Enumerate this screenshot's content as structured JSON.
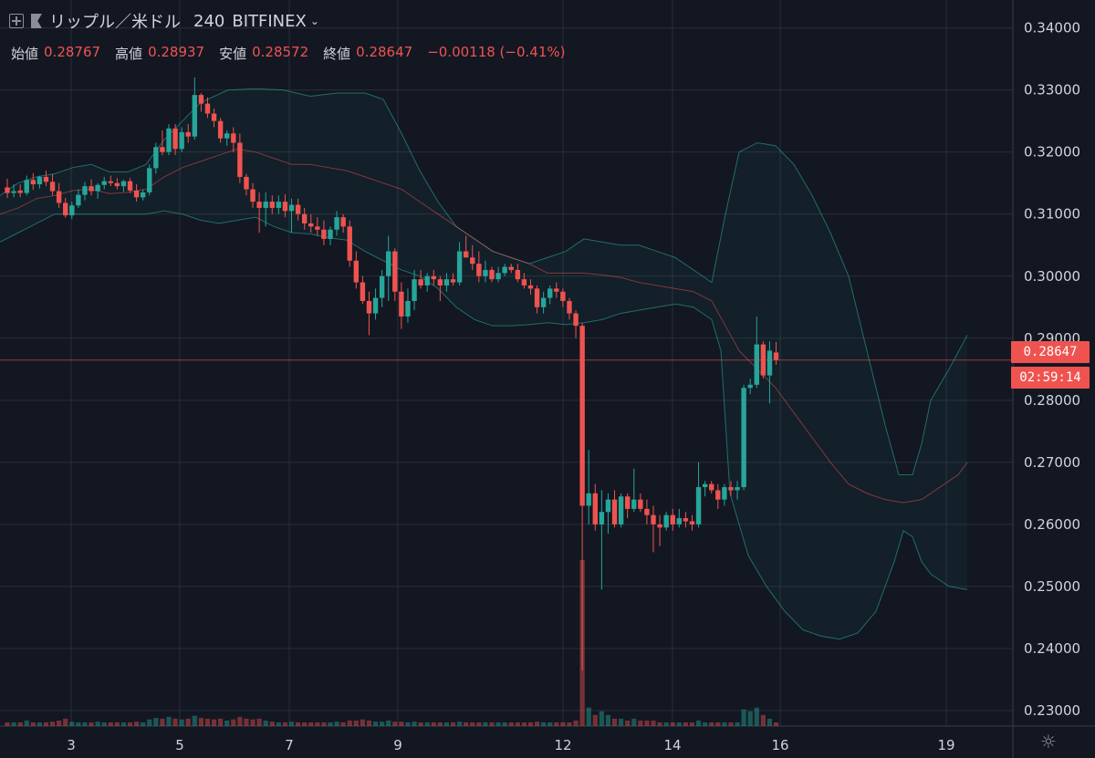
{
  "header": {
    "symbol": "リップル／米ドル",
    "interval": "240",
    "exchange": "BITFINEX"
  },
  "ohlc": {
    "open_label": "始値",
    "open": "0.28767",
    "high_label": "高値",
    "high": "0.28937",
    "low_label": "安値",
    "low": "0.28572",
    "close_label": "終値",
    "close": "0.28647",
    "change": "−0.00118 (−0.41%)"
  },
  "price_tag": "0.28647",
  "countdown": "02:59:14",
  "colors": {
    "up": "#26a69a",
    "down": "#ef5350",
    "bg": "#131722",
    "grid": "#2a2e39"
  },
  "chart_data": {
    "type": "candlestick",
    "y_range": [
      0.2275,
      0.3445
    ],
    "y_ticks": [
      "0.34000",
      "0.33000",
      "0.32000",
      "0.31000",
      "0.30000",
      "0.29000",
      "0.28000",
      "0.27000",
      "0.26000",
      "0.25000",
      "0.24000",
      "0.23000"
    ],
    "x_ticks": [
      "3",
      "5",
      "7",
      "9",
      "12",
      "14",
      "16",
      "19"
    ],
    "overlays": [
      "Bollinger Bands",
      "Volume"
    ],
    "candles": [
      [
        0.3143,
        0.3157,
        0.3126,
        0.3134
      ],
      [
        0.3134,
        0.3148,
        0.3127,
        0.3137
      ],
      [
        0.3138,
        0.3148,
        0.3127,
        0.3134
      ],
      [
        0.3134,
        0.3162,
        0.313,
        0.3155
      ],
      [
        0.3155,
        0.3166,
        0.3139,
        0.3148
      ],
      [
        0.3148,
        0.3162,
        0.3141,
        0.316
      ],
      [
        0.316,
        0.317,
        0.3145,
        0.3152
      ],
      [
        0.3152,
        0.3165,
        0.313,
        0.3137
      ],
      [
        0.3137,
        0.315,
        0.311,
        0.3118
      ],
      [
        0.3118,
        0.3126,
        0.3094,
        0.3098
      ],
      [
        0.3098,
        0.312,
        0.3092,
        0.3114
      ],
      [
        0.3114,
        0.314,
        0.311,
        0.3131
      ],
      [
        0.3131,
        0.3152,
        0.3122,
        0.3145
      ],
      [
        0.3145,
        0.3156,
        0.313,
        0.3137
      ],
      [
        0.3137,
        0.315,
        0.3125,
        0.3147
      ],
      [
        0.3147,
        0.316,
        0.314,
        0.3153
      ],
      [
        0.3153,
        0.3162,
        0.3145,
        0.315
      ],
      [
        0.315,
        0.3158,
        0.314,
        0.3145
      ],
      [
        0.3145,
        0.3155,
        0.3136,
        0.3153
      ],
      [
        0.3153,
        0.3158,
        0.3134,
        0.3138
      ],
      [
        0.3138,
        0.3148,
        0.312,
        0.3127
      ],
      [
        0.3127,
        0.314,
        0.3122,
        0.3135
      ],
      [
        0.3135,
        0.318,
        0.313,
        0.3174
      ],
      [
        0.3174,
        0.3215,
        0.3165,
        0.3208
      ],
      [
        0.3208,
        0.3235,
        0.3195,
        0.32
      ],
      [
        0.32,
        0.3245,
        0.3195,
        0.3238
      ],
      [
        0.3238,
        0.3245,
        0.3195,
        0.3205
      ],
      [
        0.3205,
        0.324,
        0.32,
        0.3232
      ],
      [
        0.3232,
        0.3245,
        0.3215,
        0.3225
      ],
      [
        0.3225,
        0.332,
        0.322,
        0.3292
      ],
      [
        0.3292,
        0.3295,
        0.3265,
        0.3278
      ],
      [
        0.3278,
        0.3288,
        0.3255,
        0.3262
      ],
      [
        0.3262,
        0.327,
        0.324,
        0.325
      ],
      [
        0.325,
        0.3255,
        0.3215,
        0.3222
      ],
      [
        0.3222,
        0.3235,
        0.321,
        0.323
      ],
      [
        0.323,
        0.324,
        0.32,
        0.3215
      ],
      [
        0.3215,
        0.323,
        0.315,
        0.316
      ],
      [
        0.316,
        0.3165,
        0.313,
        0.314
      ],
      [
        0.314,
        0.315,
        0.311,
        0.312
      ],
      [
        0.312,
        0.3135,
        0.307,
        0.311
      ],
      [
        0.311,
        0.3135,
        0.308,
        0.312
      ],
      [
        0.312,
        0.313,
        0.31,
        0.311
      ],
      [
        0.311,
        0.313,
        0.31,
        0.312
      ],
      [
        0.312,
        0.3132,
        0.3095,
        0.3105
      ],
      [
        0.3105,
        0.3125,
        0.307,
        0.3115
      ],
      [
        0.3115,
        0.3125,
        0.309,
        0.31
      ],
      [
        0.31,
        0.311,
        0.3075,
        0.3085
      ],
      [
        0.3085,
        0.31,
        0.307,
        0.308
      ],
      [
        0.308,
        0.3095,
        0.3065,
        0.3075
      ],
      [
        0.3075,
        0.309,
        0.305,
        0.306
      ],
      [
        0.306,
        0.308,
        0.305,
        0.3075
      ],
      [
        0.3075,
        0.3105,
        0.3065,
        0.3095
      ],
      [
        0.3095,
        0.31,
        0.307,
        0.308
      ],
      [
        0.308,
        0.309,
        0.3015,
        0.3025
      ],
      [
        0.3025,
        0.304,
        0.298,
        0.299
      ],
      [
        0.299,
        0.3,
        0.2955,
        0.296
      ],
      [
        0.296,
        0.2975,
        0.2905,
        0.294
      ],
      [
        0.294,
        0.298,
        0.293,
        0.2965
      ],
      [
        0.2965,
        0.301,
        0.295,
        0.3
      ],
      [
        0.3,
        0.3065,
        0.296,
        0.304
      ],
      [
        0.304,
        0.3045,
        0.296,
        0.2975
      ],
      [
        0.2975,
        0.299,
        0.2915,
        0.2935
      ],
      [
        0.2935,
        0.298,
        0.2925,
        0.296
      ],
      [
        0.296,
        0.301,
        0.2945,
        0.2995
      ],
      [
        0.2995,
        0.301,
        0.298,
        0.2985
      ],
      [
        0.2985,
        0.3005,
        0.2975,
        0.3
      ],
      [
        0.3,
        0.301,
        0.2985,
        0.2995
      ],
      [
        0.2995,
        0.3,
        0.296,
        0.2985
      ],
      [
        0.2985,
        0.3005,
        0.2975,
        0.2995
      ],
      [
        0.2995,
        0.3005,
        0.2985,
        0.299
      ],
      [
        0.299,
        0.3055,
        0.2985,
        0.304
      ],
      [
        0.304,
        0.3065,
        0.303,
        0.303
      ],
      [
        0.303,
        0.305,
        0.301,
        0.302
      ],
      [
        0.302,
        0.304,
        0.299,
        0.3
      ],
      [
        0.3,
        0.3025,
        0.299,
        0.301
      ],
      [
        0.301,
        0.3015,
        0.299,
        0.2995
      ],
      [
        0.2995,
        0.3015,
        0.299,
        0.3005
      ],
      [
        0.3005,
        0.302,
        0.3,
        0.3015
      ],
      [
        0.3015,
        0.302,
        0.3005,
        0.301
      ],
      [
        0.301,
        0.302,
        0.299,
        0.2995
      ],
      [
        0.2995,
        0.3005,
        0.298,
        0.2985
      ],
      [
        0.2985,
        0.2995,
        0.297,
        0.298
      ],
      [
        0.298,
        0.2985,
        0.294,
        0.295
      ],
      [
        0.295,
        0.2975,
        0.294,
        0.2965
      ],
      [
        0.2965,
        0.2985,
        0.2955,
        0.298
      ],
      [
        0.298,
        0.299,
        0.2965,
        0.2975
      ],
      [
        0.2975,
        0.298,
        0.295,
        0.296
      ],
      [
        0.296,
        0.2965,
        0.293,
        0.294
      ],
      [
        0.294,
        0.2945,
        0.29,
        0.292
      ],
      [
        0.292,
        0.2925,
        0.2365,
        0.263
      ],
      [
        0.263,
        0.272,
        0.26,
        0.265
      ],
      [
        0.265,
        0.2665,
        0.259,
        0.26
      ],
      [
        0.26,
        0.2655,
        0.2495,
        0.262
      ],
      [
        0.262,
        0.265,
        0.2585,
        0.264
      ],
      [
        0.264,
        0.2655,
        0.2595,
        0.26
      ],
      [
        0.26,
        0.265,
        0.2595,
        0.2645
      ],
      [
        0.2645,
        0.265,
        0.261,
        0.2625
      ],
      [
        0.2625,
        0.269,
        0.262,
        0.264
      ],
      [
        0.264,
        0.265,
        0.262,
        0.2625
      ],
      [
        0.2625,
        0.264,
        0.26,
        0.2615
      ],
      [
        0.2615,
        0.263,
        0.2555,
        0.26
      ],
      [
        0.26,
        0.2615,
        0.2565,
        0.2595
      ],
      [
        0.2595,
        0.262,
        0.259,
        0.2615
      ],
      [
        0.2615,
        0.2625,
        0.259,
        0.26
      ],
      [
        0.26,
        0.2625,
        0.2595,
        0.261
      ],
      [
        0.261,
        0.262,
        0.2595,
        0.2605
      ],
      [
        0.2605,
        0.2615,
        0.259,
        0.26
      ],
      [
        0.26,
        0.27,
        0.2595,
        0.266
      ],
      [
        0.266,
        0.267,
        0.2645,
        0.2665
      ],
      [
        0.2665,
        0.267,
        0.265,
        0.2655
      ],
      [
        0.2655,
        0.2665,
        0.2625,
        0.264
      ],
      [
        0.264,
        0.2665,
        0.263,
        0.266
      ],
      [
        0.266,
        0.267,
        0.2645,
        0.2655
      ],
      [
        0.2655,
        0.267,
        0.264,
        0.266
      ],
      [
        0.266,
        0.2825,
        0.2655,
        0.282
      ],
      [
        0.282,
        0.2835,
        0.281,
        0.2825
      ],
      [
        0.2825,
        0.2935,
        0.282,
        0.289
      ],
      [
        0.289,
        0.2895,
        0.2835,
        0.284
      ],
      [
        0.284,
        0.2895,
        0.2795,
        0.288
      ],
      [
        0.2877,
        0.2894,
        0.2857,
        0.2865
      ]
    ],
    "volume_x_fraction": [
      0.01,
      0.01,
      0.01,
      0.015,
      0.01,
      0.01,
      0.01,
      0.012,
      0.015,
      0.02,
      0.012,
      0.01,
      0.01,
      0.01,
      0.012,
      0.01,
      0.01,
      0.01,
      0.01,
      0.01,
      0.012,
      0.01,
      0.018,
      0.022,
      0.02,
      0.025,
      0.02,
      0.018,
      0.02,
      0.028,
      0.022,
      0.02,
      0.018,
      0.02,
      0.015,
      0.018,
      0.025,
      0.02,
      0.018,
      0.02,
      0.015,
      0.012,
      0.01,
      0.01,
      0.012,
      0.01,
      0.01,
      0.01,
      0.01,
      0.01,
      0.01,
      0.012,
      0.01,
      0.015,
      0.015,
      0.018,
      0.015,
      0.012,
      0.012,
      0.015,
      0.012,
      0.012,
      0.01,
      0.012,
      0.01,
      0.01,
      0.01,
      0.01,
      0.01,
      0.01,
      0.012,
      0.01,
      0.01,
      0.01,
      0.01,
      0.01,
      0.01,
      0.01,
      0.01,
      0.01,
      0.01,
      0.01,
      0.012,
      0.01,
      0.01,
      0.01,
      0.01,
      0.01,
      0.015,
      0.45,
      0.05,
      0.03,
      0.04,
      0.03,
      0.02,
      0.02,
      0.015,
      0.02,
      0.015,
      0.015,
      0.015,
      0.01,
      0.01,
      0.01,
      0.01,
      0.01,
      0.01,
      0.015,
      0.01,
      0.01,
      0.01,
      0.01,
      0.01,
      0.01,
      0.045,
      0.04,
      0.05,
      0.03,
      0.02,
      0.01
    ],
    "bollinger_upper": [
      [
        0.313,
        0
      ],
      [
        0.315,
        20
      ],
      [
        0.316,
        40
      ],
      [
        0.3165,
        60
      ],
      [
        0.3175,
        80
      ],
      [
        0.318,
        100
      ],
      [
        0.3168,
        120
      ],
      [
        0.3168,
        140
      ],
      [
        0.318,
        160
      ],
      [
        0.322,
        180
      ],
      [
        0.325,
        200
      ],
      [
        0.328,
        220
      ],
      [
        0.33,
        250
      ],
      [
        0.3302,
        280
      ],
      [
        0.33,
        310
      ],
      [
        0.329,
        340
      ],
      [
        0.3295,
        370
      ],
      [
        0.3295,
        400
      ],
      [
        0.3285,
        420
      ],
      [
        0.323,
        440
      ],
      [
        0.317,
        460
      ],
      [
        0.312,
        480
      ],
      [
        0.308,
        500
      ],
      [
        0.306,
        520
      ],
      [
        0.304,
        540
      ],
      [
        0.303,
        560
      ],
      [
        0.302,
        580
      ],
      [
        0.303,
        600
      ],
      [
        0.304,
        620
      ],
      [
        0.306,
        640
      ],
      [
        0.3055,
        660
      ],
      [
        0.305,
        680
      ],
      [
        0.305,
        700
      ],
      [
        0.304,
        720
      ],
      [
        0.303,
        740
      ],
      [
        0.301,
        760
      ],
      [
        0.299,
        780
      ],
      [
        0.31,
        795
      ],
      [
        0.32,
        810
      ],
      [
        0.3215,
        830
      ],
      [
        0.321,
        850
      ],
      [
        0.318,
        870
      ],
      [
        0.313,
        890
      ],
      [
        0.307,
        910
      ],
      [
        0.3,
        930
      ],
      [
        0.288,
        950
      ],
      [
        0.276,
        970
      ],
      [
        0.268,
        985
      ],
      [
        0.268,
        1000
      ],
      [
        0.273,
        1010
      ],
      [
        0.28,
        1020
      ],
      [
        0.285,
        1040
      ],
      [
        0.2905,
        1060
      ]
    ],
    "bollinger_lower": [
      [
        0.3055,
        0
      ],
      [
        0.307,
        20
      ],
      [
        0.3085,
        40
      ],
      [
        0.31,
        60
      ],
      [
        0.31,
        80
      ],
      [
        0.31,
        100
      ],
      [
        0.31,
        120
      ],
      [
        0.31,
        140
      ],
      [
        0.31,
        160
      ],
      [
        0.3105,
        180
      ],
      [
        0.31,
        200
      ],
      [
        0.309,
        220
      ],
      [
        0.3085,
        240
      ],
      [
        0.309,
        260
      ],
      [
        0.3095,
        280
      ],
      [
        0.308,
        300
      ],
      [
        0.307,
        320
      ],
      [
        0.3068,
        340
      ],
      [
        0.3062,
        360
      ],
      [
        0.3058,
        380
      ],
      [
        0.304,
        400
      ],
      [
        0.3025,
        420
      ],
      [
        0.301,
        440
      ],
      [
        0.3,
        460
      ],
      [
        0.298,
        480
      ],
      [
        0.295,
        500
      ],
      [
        0.293,
        520
      ],
      [
        0.292,
        540
      ],
      [
        0.292,
        560
      ],
      [
        0.2922,
        580
      ],
      [
        0.2925,
        600
      ],
      [
        0.2922,
        620
      ],
      [
        0.2925,
        640
      ],
      [
        0.293,
        660
      ],
      [
        0.294,
        680
      ],
      [
        0.2945,
        700
      ],
      [
        0.295,
        720
      ],
      [
        0.2955,
        740
      ],
      [
        0.295,
        760
      ],
      [
        0.293,
        780
      ],
      [
        0.288,
        790
      ],
      [
        0.265,
        800
      ],
      [
        0.255,
        820
      ],
      [
        0.25,
        840
      ],
      [
        0.246,
        860
      ],
      [
        0.243,
        880
      ],
      [
        0.242,
        900
      ],
      [
        0.2415,
        920
      ],
      [
        0.2425,
        940
      ],
      [
        0.246,
        960
      ],
      [
        0.254,
        980
      ],
      [
        0.259,
        990
      ],
      [
        0.258,
        1000
      ],
      [
        0.254,
        1010
      ],
      [
        0.252,
        1020
      ],
      [
        0.25,
        1040
      ],
      [
        0.2495,
        1060
      ]
    ],
    "bollinger_mid": [
      [
        0.31,
        0
      ],
      [
        0.311,
        20
      ],
      [
        0.3125,
        40
      ],
      [
        0.313,
        60
      ],
      [
        0.3138,
        80
      ],
      [
        0.314,
        100
      ],
      [
        0.3133,
        120
      ],
      [
        0.3135,
        140
      ],
      [
        0.314,
        160
      ],
      [
        0.316,
        180
      ],
      [
        0.3175,
        200
      ],
      [
        0.3185,
        220
      ],
      [
        0.3195,
        240
      ],
      [
        0.3205,
        260
      ],
      [
        0.32,
        280
      ],
      [
        0.319,
        300
      ],
      [
        0.318,
        320
      ],
      [
        0.318,
        340
      ],
      [
        0.3175,
        360
      ],
      [
        0.317,
        380
      ],
      [
        0.316,
        400
      ],
      [
        0.315,
        420
      ],
      [
        0.314,
        440
      ],
      [
        0.312,
        460
      ],
      [
        0.31,
        480
      ],
      [
        0.308,
        500
      ],
      [
        0.306,
        520
      ],
      [
        0.304,
        540
      ],
      [
        0.303,
        560
      ],
      [
        0.302,
        580
      ],
      [
        0.3005,
        600
      ],
      [
        0.3005,
        620
      ],
      [
        0.3005,
        640
      ],
      [
        0.3002,
        660
      ],
      [
        0.2998,
        680
      ],
      [
        0.299,
        700
      ],
      [
        0.2985,
        720
      ],
      [
        0.298,
        740
      ],
      [
        0.2975,
        760
      ],
      [
        0.296,
        780
      ],
      [
        0.292,
        795
      ],
      [
        0.288,
        810
      ],
      [
        0.285,
        830
      ],
      [
        0.282,
        850
      ],
      [
        0.278,
        870
      ],
      [
        0.274,
        890
      ],
      [
        0.27,
        910
      ],
      [
        0.2665,
        930
      ],
      [
        0.265,
        950
      ],
      [
        0.264,
        970
      ],
      [
        0.2635,
        990
      ],
      [
        0.264,
        1010
      ],
      [
        0.266,
        1030
      ],
      [
        0.268,
        1050
      ],
      [
        0.27,
        1060
      ]
    ]
  }
}
